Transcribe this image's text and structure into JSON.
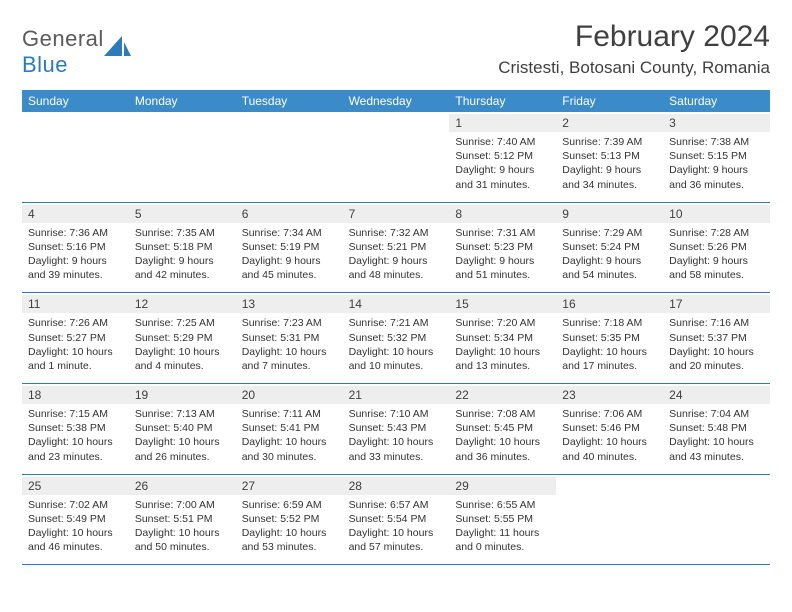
{
  "logo": {
    "text_general": "General",
    "text_blue": "Blue"
  },
  "title": "February 2024",
  "location": "Cristesti, Botosani County, Romania",
  "colors": {
    "header_bg": "#3b8bc9",
    "header_text": "#ffffff",
    "day_number_bg": "#eeeeee",
    "week_border": "#2b7bbd",
    "accent": "#2b7bbd"
  },
  "weekdays": [
    "Sunday",
    "Monday",
    "Tuesday",
    "Wednesday",
    "Thursday",
    "Friday",
    "Saturday"
  ],
  "weeks": [
    [
      {
        "blank": true
      },
      {
        "blank": true
      },
      {
        "blank": true
      },
      {
        "blank": true
      },
      {
        "day": "1",
        "sunrise": "Sunrise: 7:40 AM",
        "sunset": "Sunset: 5:12 PM",
        "daylight1": "Daylight: 9 hours",
        "daylight2": "and 31 minutes."
      },
      {
        "day": "2",
        "sunrise": "Sunrise: 7:39 AM",
        "sunset": "Sunset: 5:13 PM",
        "daylight1": "Daylight: 9 hours",
        "daylight2": "and 34 minutes."
      },
      {
        "day": "3",
        "sunrise": "Sunrise: 7:38 AM",
        "sunset": "Sunset: 5:15 PM",
        "daylight1": "Daylight: 9 hours",
        "daylight2": "and 36 minutes."
      }
    ],
    [
      {
        "day": "4",
        "sunrise": "Sunrise: 7:36 AM",
        "sunset": "Sunset: 5:16 PM",
        "daylight1": "Daylight: 9 hours",
        "daylight2": "and 39 minutes."
      },
      {
        "day": "5",
        "sunrise": "Sunrise: 7:35 AM",
        "sunset": "Sunset: 5:18 PM",
        "daylight1": "Daylight: 9 hours",
        "daylight2": "and 42 minutes."
      },
      {
        "day": "6",
        "sunrise": "Sunrise: 7:34 AM",
        "sunset": "Sunset: 5:19 PM",
        "daylight1": "Daylight: 9 hours",
        "daylight2": "and 45 minutes."
      },
      {
        "day": "7",
        "sunrise": "Sunrise: 7:32 AM",
        "sunset": "Sunset: 5:21 PM",
        "daylight1": "Daylight: 9 hours",
        "daylight2": "and 48 minutes."
      },
      {
        "day": "8",
        "sunrise": "Sunrise: 7:31 AM",
        "sunset": "Sunset: 5:23 PM",
        "daylight1": "Daylight: 9 hours",
        "daylight2": "and 51 minutes."
      },
      {
        "day": "9",
        "sunrise": "Sunrise: 7:29 AM",
        "sunset": "Sunset: 5:24 PM",
        "daylight1": "Daylight: 9 hours",
        "daylight2": "and 54 minutes."
      },
      {
        "day": "10",
        "sunrise": "Sunrise: 7:28 AM",
        "sunset": "Sunset: 5:26 PM",
        "daylight1": "Daylight: 9 hours",
        "daylight2": "and 58 minutes."
      }
    ],
    [
      {
        "day": "11",
        "sunrise": "Sunrise: 7:26 AM",
        "sunset": "Sunset: 5:27 PM",
        "daylight1": "Daylight: 10 hours",
        "daylight2": "and 1 minute."
      },
      {
        "day": "12",
        "sunrise": "Sunrise: 7:25 AM",
        "sunset": "Sunset: 5:29 PM",
        "daylight1": "Daylight: 10 hours",
        "daylight2": "and 4 minutes."
      },
      {
        "day": "13",
        "sunrise": "Sunrise: 7:23 AM",
        "sunset": "Sunset: 5:31 PM",
        "daylight1": "Daylight: 10 hours",
        "daylight2": "and 7 minutes."
      },
      {
        "day": "14",
        "sunrise": "Sunrise: 7:21 AM",
        "sunset": "Sunset: 5:32 PM",
        "daylight1": "Daylight: 10 hours",
        "daylight2": "and 10 minutes."
      },
      {
        "day": "15",
        "sunrise": "Sunrise: 7:20 AM",
        "sunset": "Sunset: 5:34 PM",
        "daylight1": "Daylight: 10 hours",
        "daylight2": "and 13 minutes."
      },
      {
        "day": "16",
        "sunrise": "Sunrise: 7:18 AM",
        "sunset": "Sunset: 5:35 PM",
        "daylight1": "Daylight: 10 hours",
        "daylight2": "and 17 minutes."
      },
      {
        "day": "17",
        "sunrise": "Sunrise: 7:16 AM",
        "sunset": "Sunset: 5:37 PM",
        "daylight1": "Daylight: 10 hours",
        "daylight2": "and 20 minutes."
      }
    ],
    [
      {
        "day": "18",
        "sunrise": "Sunrise: 7:15 AM",
        "sunset": "Sunset: 5:38 PM",
        "daylight1": "Daylight: 10 hours",
        "daylight2": "and 23 minutes."
      },
      {
        "day": "19",
        "sunrise": "Sunrise: 7:13 AM",
        "sunset": "Sunset: 5:40 PM",
        "daylight1": "Daylight: 10 hours",
        "daylight2": "and 26 minutes."
      },
      {
        "day": "20",
        "sunrise": "Sunrise: 7:11 AM",
        "sunset": "Sunset: 5:41 PM",
        "daylight1": "Daylight: 10 hours",
        "daylight2": "and 30 minutes."
      },
      {
        "day": "21",
        "sunrise": "Sunrise: 7:10 AM",
        "sunset": "Sunset: 5:43 PM",
        "daylight1": "Daylight: 10 hours",
        "daylight2": "and 33 minutes."
      },
      {
        "day": "22",
        "sunrise": "Sunrise: 7:08 AM",
        "sunset": "Sunset: 5:45 PM",
        "daylight1": "Daylight: 10 hours",
        "daylight2": "and 36 minutes."
      },
      {
        "day": "23",
        "sunrise": "Sunrise: 7:06 AM",
        "sunset": "Sunset: 5:46 PM",
        "daylight1": "Daylight: 10 hours",
        "daylight2": "and 40 minutes."
      },
      {
        "day": "24",
        "sunrise": "Sunrise: 7:04 AM",
        "sunset": "Sunset: 5:48 PM",
        "daylight1": "Daylight: 10 hours",
        "daylight2": "and 43 minutes."
      }
    ],
    [
      {
        "day": "25",
        "sunrise": "Sunrise: 7:02 AM",
        "sunset": "Sunset: 5:49 PM",
        "daylight1": "Daylight: 10 hours",
        "daylight2": "and 46 minutes."
      },
      {
        "day": "26",
        "sunrise": "Sunrise: 7:00 AM",
        "sunset": "Sunset: 5:51 PM",
        "daylight1": "Daylight: 10 hours",
        "daylight2": "and 50 minutes."
      },
      {
        "day": "27",
        "sunrise": "Sunrise: 6:59 AM",
        "sunset": "Sunset: 5:52 PM",
        "daylight1": "Daylight: 10 hours",
        "daylight2": "and 53 minutes."
      },
      {
        "day": "28",
        "sunrise": "Sunrise: 6:57 AM",
        "sunset": "Sunset: 5:54 PM",
        "daylight1": "Daylight: 10 hours",
        "daylight2": "and 57 minutes."
      },
      {
        "day": "29",
        "sunrise": "Sunrise: 6:55 AM",
        "sunset": "Sunset: 5:55 PM",
        "daylight1": "Daylight: 11 hours",
        "daylight2": "and 0 minutes."
      },
      {
        "blank": true
      },
      {
        "blank": true
      }
    ]
  ]
}
